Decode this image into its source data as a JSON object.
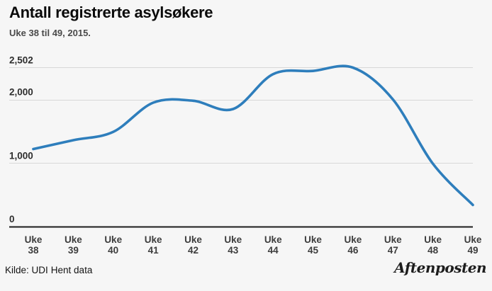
{
  "header": {
    "title": "Antall registrerte asylsøkere",
    "subtitle": "Uke 38 til 49, 2015."
  },
  "chart_data": {
    "type": "line",
    "title": "Antall registrerte asylsøkere",
    "subtitle": "Uke 38 til 49, 2015.",
    "categories": [
      "Uke 38",
      "Uke 39",
      "Uke 40",
      "Uke 41",
      "Uke 42",
      "Uke 43",
      "Uke 44",
      "Uke 45",
      "Uke 46",
      "Uke 47",
      "Uke 48",
      "Uke 49"
    ],
    "values": [
      1220,
      1360,
      1490,
      1950,
      1980,
      1850,
      2400,
      2450,
      2502,
      2000,
      990,
      340
    ],
    "xlabel": "",
    "ylabel": "",
    "ylim": [
      0,
      2502
    ],
    "yticks": [
      {
        "label": "2,502",
        "value": 2502
      },
      {
        "label": "2,000",
        "value": 2000
      },
      {
        "label": "1,000",
        "value": 1000
      },
      {
        "label": "0",
        "value": 0
      }
    ],
    "grid": "horizontal",
    "legend": "none",
    "smoothing": "curved",
    "line_color": "#2E7EBC"
  },
  "footer": {
    "source": "Kilde: UDI",
    "get_data_link": "Hent data",
    "brand": "Aftenposten"
  },
  "colors": {
    "background": "#f6f6f6",
    "line": "#2E7EBC",
    "grid": "#d8d8d8",
    "zero_axis": "#1c1c1c"
  }
}
